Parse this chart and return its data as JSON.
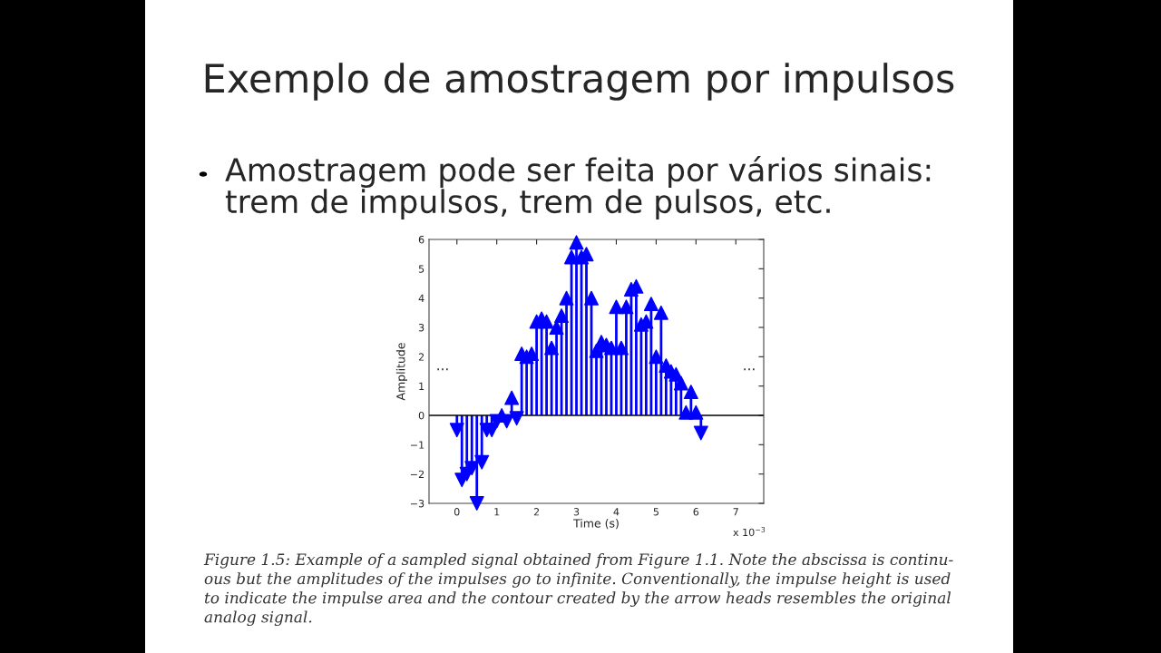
{
  "chart_data": {
    "type": "lollipop",
    "title": "Exemplo de amostragem por impulsos",
    "subtitle": "Amostragem pode ser feita por vários sinais:\ntrem de impulsos, trem de pulsos, etc.",
    "xlabel": "Time (s)",
    "ylabel": "Amplitude",
    "x": [
      0,
      0.125,
      0.25,
      0.375,
      0.5,
      0.625,
      0.75,
      0.875,
      1.0,
      1.125,
      1.25,
      1.375,
      1.5,
      1.625,
      1.75,
      1.875,
      2.0,
      2.125,
      2.25,
      2.375,
      2.5,
      2.625,
      2.75,
      2.875,
      3.0,
      3.125,
      3.25,
      3.375,
      3.5,
      3.625,
      3.75,
      3.875,
      4.0,
      4.125,
      4.25,
      4.375,
      4.5,
      4.625,
      4.75,
      4.875,
      5.0,
      5.125,
      5.25,
      5.375,
      5.5,
      5.625,
      5.75,
      5.875,
      6.0,
      6.125
    ],
    "series": [
      {
        "color": "#0000ff",
        "values": [
          -0.5,
          -2.2,
          -2.0,
          -1.8,
          -3.0,
          -1.6,
          -0.5,
          -0.5,
          -0.2,
          0.0,
          -0.2,
          0.6,
          -0.1,
          2.1,
          2.0,
          2.1,
          3.2,
          3.3,
          3.2,
          2.3,
          3.0,
          3.4,
          4.0,
          5.4,
          5.9,
          5.4,
          5.5,
          4.0,
          2.2,
          2.5,
          2.4,
          2.3,
          3.7,
          2.3,
          3.7,
          4.3,
          4.4,
          3.1,
          3.2,
          3.8,
          2.0,
          3.5,
          1.7,
          1.5,
          1.4,
          1.1,
          0.1,
          0.8,
          0.1,
          -0.6
        ]
      }
    ],
    "marker": "triangle",
    "xlim": [
      -0.7,
      7.7
    ],
    "xticks": [
      0,
      1,
      2,
      3,
      4,
      5,
      6,
      7
    ],
    "ylim": [
      -3,
      6
    ],
    "yticks": [
      -3,
      -2,
      -1,
      0,
      1,
      2,
      3,
      4,
      5,
      6
    ],
    "annotations": [
      "x 10$^{−3}$",
      "...",
      "...",
      "Figure 1.5: Example of a sampled signal obtained from Figure 1.1. Note the abscissa is continu-\nous but the amplitudes of the impulses go to infinite. Conventionally, the impulse height is used\nto indicate the impulse area and the contour created by the arrow heads resembles the original\nanalog signal."
    ]
  }
}
